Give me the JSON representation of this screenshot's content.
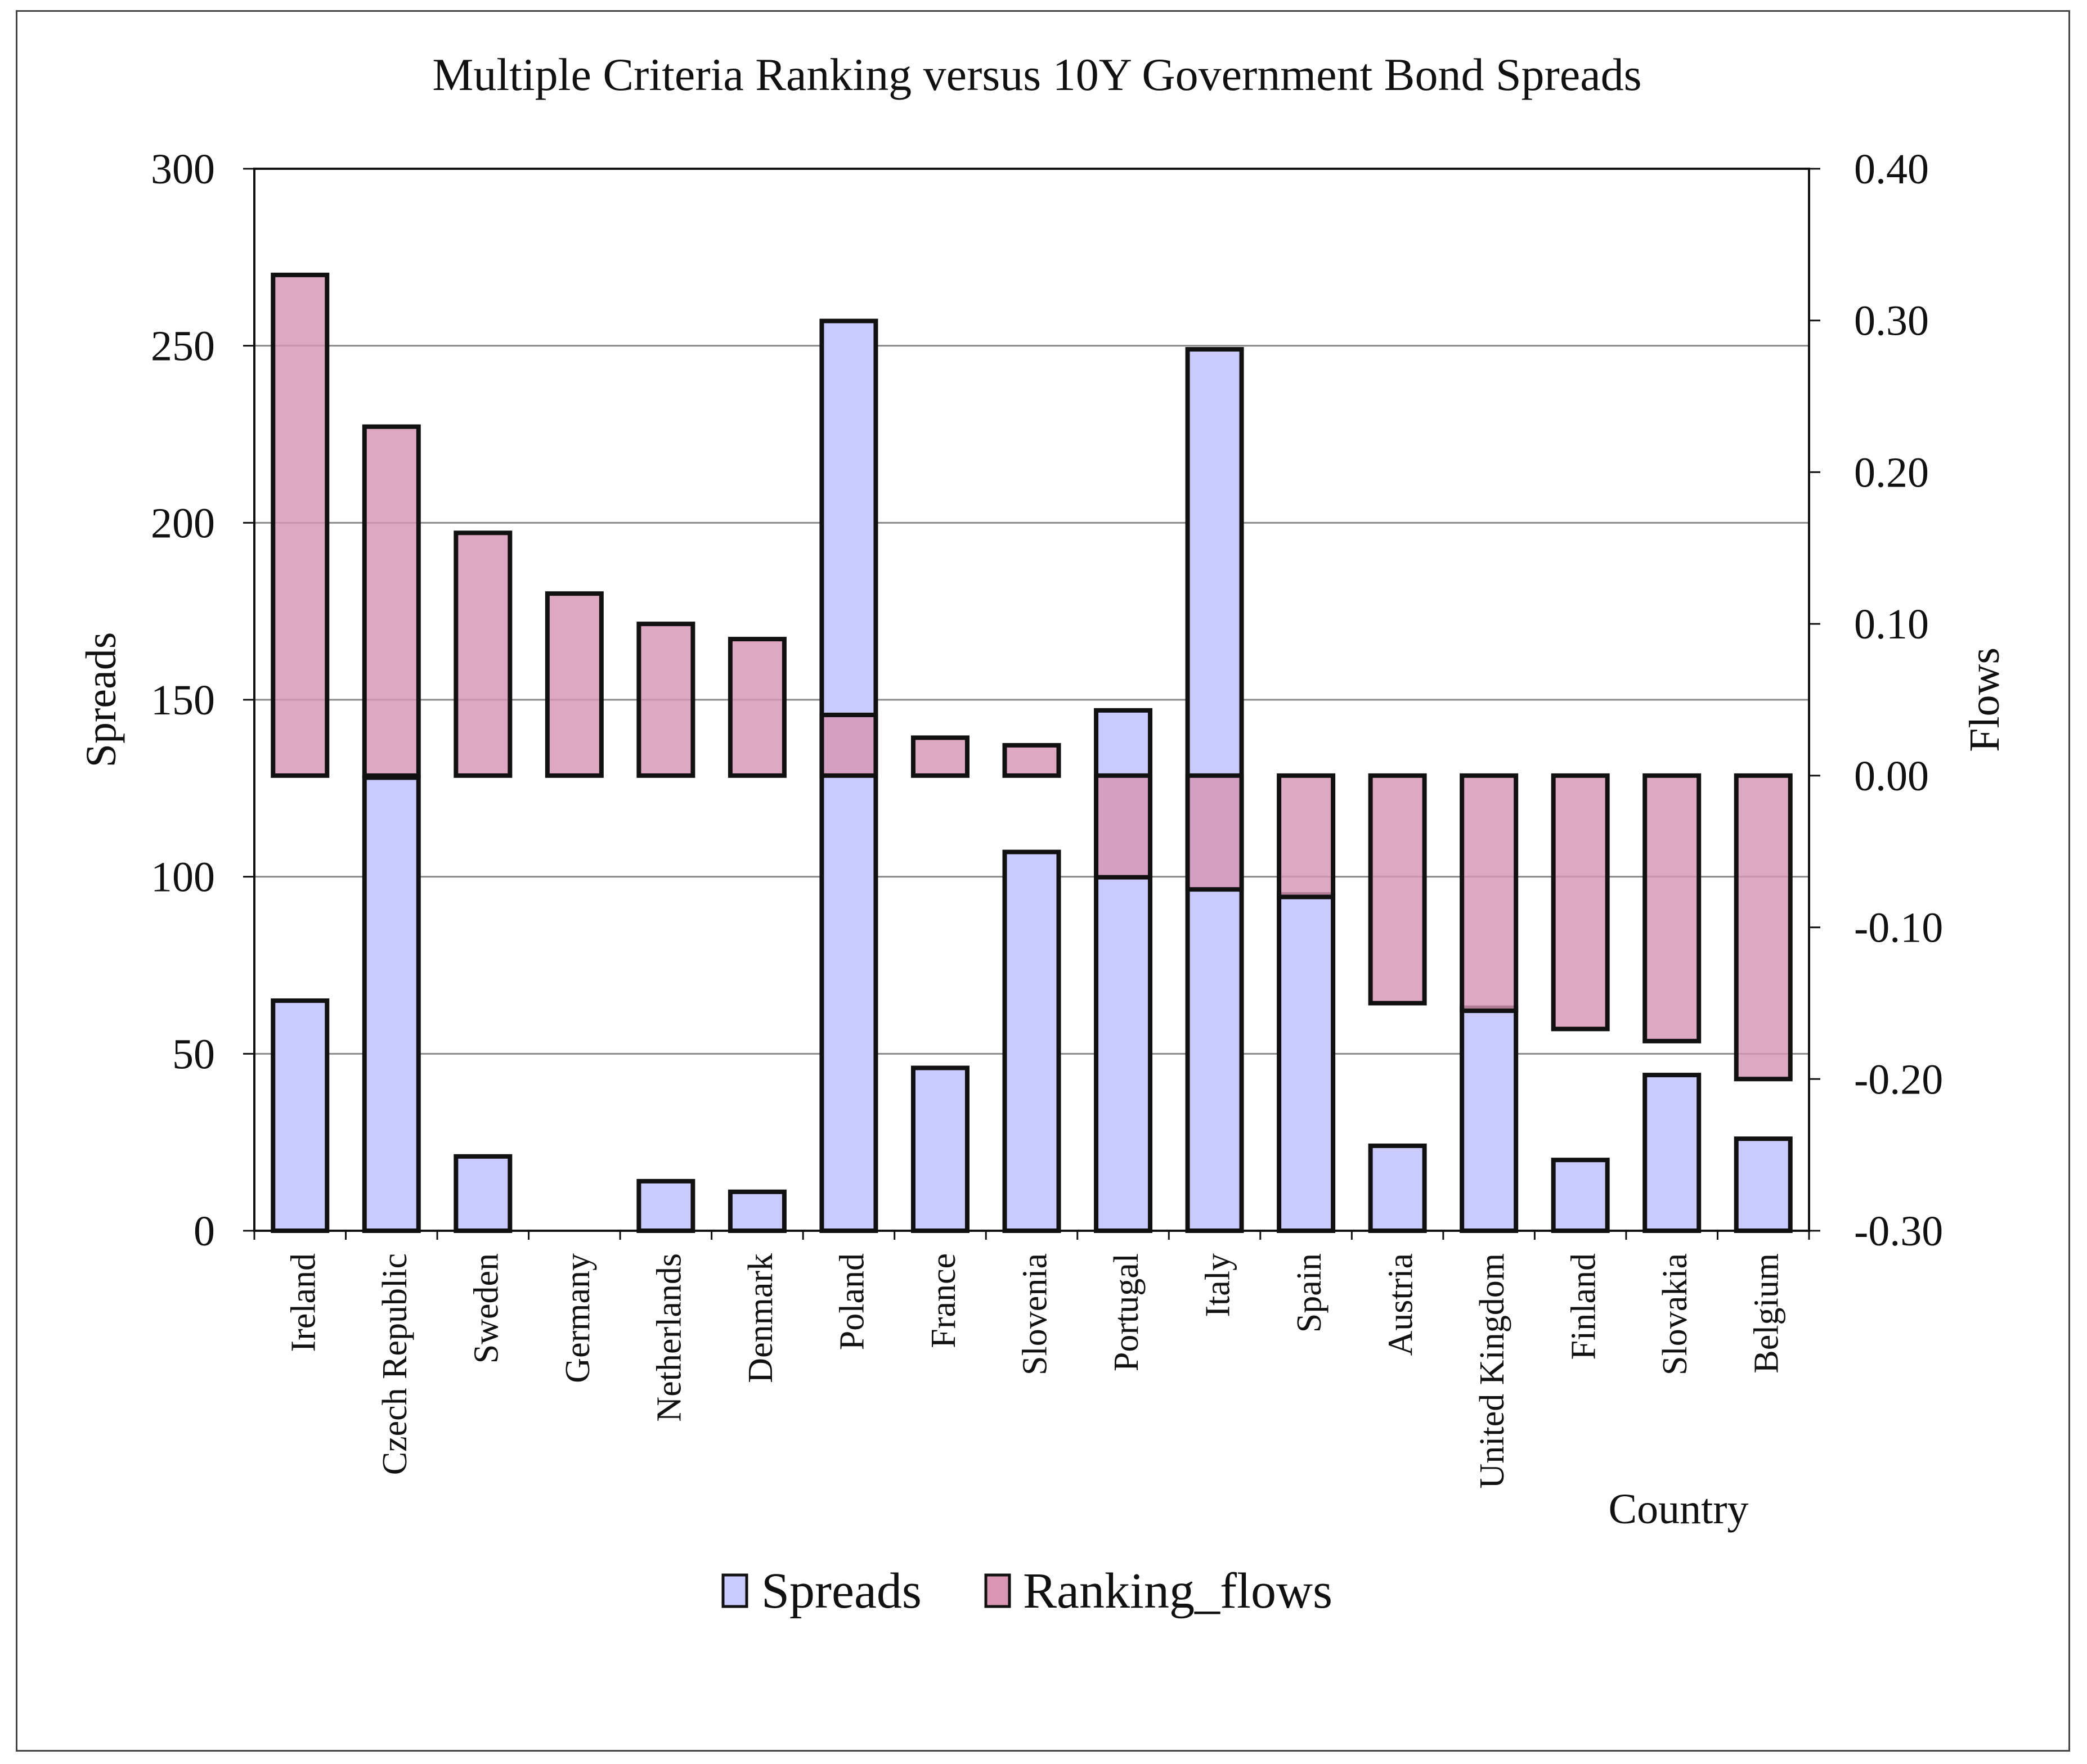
{
  "chart_data": {
    "type": "bar",
    "title": "Multiple Criteria Ranking versus 10Y Government Bond Spreads",
    "xlabel": "Country",
    "ylabel": "Spreads",
    "y2label": "Flows",
    "ylim": [
      0,
      300
    ],
    "y2lim": [
      -0.3,
      0.4
    ],
    "y_ticks": [
      "0",
      "50",
      "100",
      "150",
      "200",
      "250",
      "300"
    ],
    "y2_ticks": [
      "-0.30",
      "-0.20",
      "-0.10",
      "0.00",
      "0.10",
      "0.20",
      "0.30",
      "0.40"
    ],
    "grid": true,
    "legend_position": "bottom-center",
    "categories": [
      "Ireland",
      "Czech Republic",
      "Sweden",
      "Germany",
      "Netherlands",
      "Denmark",
      "Poland",
      "France",
      "Slovenia",
      "Portugal",
      "Italy",
      "Spain",
      "Austria",
      "United Kingdom",
      "Finland",
      "Slovakia",
      "Belgium"
    ],
    "series": [
      {
        "name": "Spreads",
        "axis": "left",
        "color": "#c9cbff",
        "values": [
          65,
          128,
          21,
          0,
          14,
          11,
          257,
          46,
          107,
          147,
          249,
          95,
          24,
          63,
          20,
          44,
          26
        ]
      },
      {
        "name": "Ranking_flows",
        "axis": "right",
        "color": "#d895b4",
        "values": [
          0.33,
          0.23,
          0.16,
          0.12,
          0.1,
          0.09,
          0.04,
          0.025,
          0.02,
          -0.067,
          -0.075,
          -0.08,
          -0.15,
          -0.155,
          -0.167,
          -0.175,
          -0.2
        ]
      }
    ]
  },
  "colors": {
    "spreads_fill": "#c9cbff",
    "flows_fill": "#d895b4",
    "overlap_fill": "#c27fb8",
    "bar_stroke": "#111111",
    "grid": "#8a8a8a"
  }
}
